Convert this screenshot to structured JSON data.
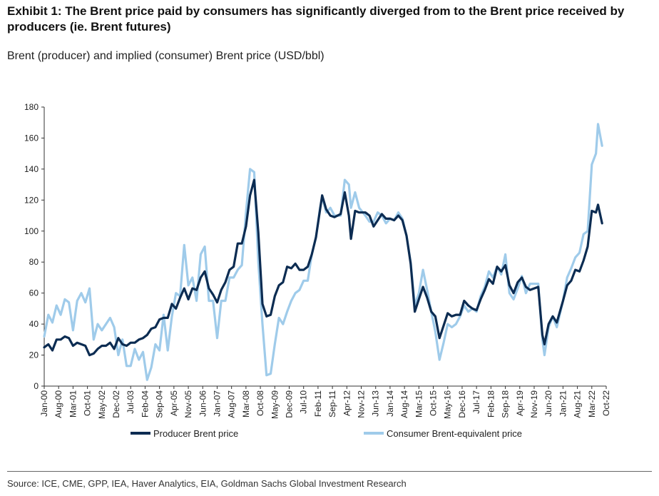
{
  "title": "Exhibit 1: The Brent price paid by consumers has significantly diverged from to the Brent price received by producers (ie. Brent futures)",
  "subtitle": "Brent (producer) and implied (consumer) Brent price (USD/bbl)",
  "source": "Source: ICE, CME, GPP, IEA, Haver Analytics, EIA, Goldman Sachs Global Investment Research",
  "colors": {
    "producer": "#0c2c52",
    "consumer": "#9fcbea",
    "axis": "#333333"
  },
  "chart_data": {
    "type": "line",
    "ylim": [
      0,
      180
    ],
    "y_ticks": [
      "0",
      "20",
      "40",
      "60",
      "80",
      "100",
      "120",
      "140",
      "160",
      "180"
    ],
    "x_ticks": [
      "Jan-00",
      "Aug-00",
      "Mar-01",
      "Oct-01",
      "May-02",
      "Dec-02",
      "Jul-03",
      "Feb-04",
      "Sep-04",
      "Apr-05",
      "Nov-05",
      "Jun-06",
      "Jan-07",
      "Aug-07",
      "Mar-08",
      "Oct-08",
      "May-09",
      "Dec-09",
      "Jul-10",
      "Feb-11",
      "Sep-11",
      "Apr-12",
      "Nov-12",
      "Jun-13",
      "Jan-14",
      "Aug-14",
      "Mar-15",
      "Oct-15",
      "May-16",
      "Dec-16",
      "Jul-17",
      "Feb-18",
      "Sep-18",
      "Apr-19",
      "Nov-19",
      "Jun-20",
      "Jan-21",
      "Aug-21",
      "Mar-22",
      "Oct-22"
    ],
    "legend_position": "bottom",
    "series": [
      {
        "name": "Producer Brent price",
        "points": [
          [
            "2000-01",
            25
          ],
          [
            "2000-03",
            27
          ],
          [
            "2000-05",
            23
          ],
          [
            "2000-07",
            30
          ],
          [
            "2000-09",
            30
          ],
          [
            "2000-11",
            32
          ],
          [
            "2001-01",
            31
          ],
          [
            "2001-03",
            26
          ],
          [
            "2001-05",
            28
          ],
          [
            "2001-07",
            27
          ],
          [
            "2001-09",
            26
          ],
          [
            "2001-11",
            20
          ],
          [
            "2002-01",
            21
          ],
          [
            "2002-03",
            24
          ],
          [
            "2002-05",
            26
          ],
          [
            "2002-07",
            26
          ],
          [
            "2002-09",
            28
          ],
          [
            "2002-11",
            24
          ],
          [
            "2003-01",
            31
          ],
          [
            "2003-03",
            27
          ],
          [
            "2003-05",
            26
          ],
          [
            "2003-07",
            28
          ],
          [
            "2003-09",
            28
          ],
          [
            "2003-11",
            30
          ],
          [
            "2004-01",
            31
          ],
          [
            "2004-03",
            33
          ],
          [
            "2004-05",
            37
          ],
          [
            "2004-07",
            38
          ],
          [
            "2004-09",
            43
          ],
          [
            "2004-11",
            44
          ],
          [
            "2005-01",
            44
          ],
          [
            "2005-03",
            53
          ],
          [
            "2005-05",
            50
          ],
          [
            "2005-07",
            57
          ],
          [
            "2005-09",
            63
          ],
          [
            "2005-11",
            56
          ],
          [
            "2006-01",
            63
          ],
          [
            "2006-03",
            62
          ],
          [
            "2006-05",
            70
          ],
          [
            "2006-07",
            74
          ],
          [
            "2006-09",
            63
          ],
          [
            "2006-11",
            59
          ],
          [
            "2007-01",
            54
          ],
          [
            "2007-03",
            62
          ],
          [
            "2007-05",
            67
          ],
          [
            "2007-07",
            75
          ],
          [
            "2007-09",
            77
          ],
          [
            "2007-11",
            92
          ],
          [
            "2008-01",
            92
          ],
          [
            "2008-03",
            103
          ],
          [
            "2008-05",
            123
          ],
          [
            "2008-07",
            133
          ],
          [
            "2008-09",
            99
          ],
          [
            "2008-11",
            53
          ],
          [
            "2009-01",
            45
          ],
          [
            "2009-03",
            46
          ],
          [
            "2009-05",
            58
          ],
          [
            "2009-07",
            65
          ],
          [
            "2009-09",
            67
          ],
          [
            "2009-11",
            77
          ],
          [
            "2010-01",
            76
          ],
          [
            "2010-03",
            79
          ],
          [
            "2010-05",
            75
          ],
          [
            "2010-07",
            75
          ],
          [
            "2010-09",
            77
          ],
          [
            "2010-11",
            85
          ],
          [
            "2011-01",
            96
          ],
          [
            "2011-03",
            114
          ],
          [
            "2011-04",
            123
          ],
          [
            "2011-06",
            114
          ],
          [
            "2011-08",
            110
          ],
          [
            "2011-10",
            109
          ],
          [
            "2012-01",
            111
          ],
          [
            "2012-03",
            125
          ],
          [
            "2012-05",
            110
          ],
          [
            "2012-06",
            95
          ],
          [
            "2012-08",
            113
          ],
          [
            "2012-10",
            112
          ],
          [
            "2013-01",
            112
          ],
          [
            "2013-03",
            110
          ],
          [
            "2013-05",
            103
          ],
          [
            "2013-07",
            107
          ],
          [
            "2013-09",
            111
          ],
          [
            "2013-11",
            108
          ],
          [
            "2014-01",
            108
          ],
          [
            "2014-03",
            107
          ],
          [
            "2014-05",
            110
          ],
          [
            "2014-07",
            107
          ],
          [
            "2014-09",
            97
          ],
          [
            "2014-11",
            79
          ],
          [
            "2015-01",
            48
          ],
          [
            "2015-03",
            56
          ],
          [
            "2015-05",
            64
          ],
          [
            "2015-07",
            57
          ],
          [
            "2015-09",
            48
          ],
          [
            "2015-11",
            45
          ],
          [
            "2016-01",
            31
          ],
          [
            "2016-03",
            39
          ],
          [
            "2016-05",
            47
          ],
          [
            "2016-07",
            45
          ],
          [
            "2016-09",
            46
          ],
          [
            "2016-11",
            46
          ],
          [
            "2017-01",
            55
          ],
          [
            "2017-03",
            52
          ],
          [
            "2017-05",
            50
          ],
          [
            "2017-07",
            49
          ],
          [
            "2017-09",
            56
          ],
          [
            "2017-11",
            62
          ],
          [
            "2018-01",
            69
          ],
          [
            "2018-03",
            66
          ],
          [
            "2018-05",
            77
          ],
          [
            "2018-07",
            74
          ],
          [
            "2018-09",
            78
          ],
          [
            "2018-11",
            65
          ],
          [
            "2019-01",
            60
          ],
          [
            "2019-03",
            67
          ],
          [
            "2019-05",
            70
          ],
          [
            "2019-07",
            64
          ],
          [
            "2019-09",
            62
          ],
          [
            "2019-11",
            63
          ],
          [
            "2020-01",
            64
          ],
          [
            "2020-03",
            33
          ],
          [
            "2020-04",
            27
          ],
          [
            "2020-06",
            40
          ],
          [
            "2020-08",
            45
          ],
          [
            "2020-10",
            41
          ],
          [
            "2021-01",
            55
          ],
          [
            "2021-03",
            65
          ],
          [
            "2021-05",
            68
          ],
          [
            "2021-07",
            75
          ],
          [
            "2021-09",
            74
          ],
          [
            "2021-11",
            81
          ],
          [
            "2022-01",
            90
          ],
          [
            "2022-03",
            113
          ],
          [
            "2022-05",
            112
          ],
          [
            "2022-06",
            117
          ],
          [
            "2022-08",
            105
          ]
        ]
      },
      {
        "name": "Consumer Brent-equivalent price",
        "points": [
          [
            "2000-01",
            32
          ],
          [
            "2000-03",
            46
          ],
          [
            "2000-05",
            41
          ],
          [
            "2000-07",
            52
          ],
          [
            "2000-09",
            46
          ],
          [
            "2000-11",
            56
          ],
          [
            "2001-01",
            54
          ],
          [
            "2001-03",
            36
          ],
          [
            "2001-05",
            55
          ],
          [
            "2001-07",
            60
          ],
          [
            "2001-09",
            54
          ],
          [
            "2001-11",
            63
          ],
          [
            "2002-01",
            30
          ],
          [
            "2002-03",
            40
          ],
          [
            "2002-05",
            36
          ],
          [
            "2002-07",
            40
          ],
          [
            "2002-09",
            44
          ],
          [
            "2002-11",
            38
          ],
          [
            "2003-01",
            20
          ],
          [
            "2003-03",
            30
          ],
          [
            "2003-05",
            13
          ],
          [
            "2003-07",
            13
          ],
          [
            "2003-09",
            24
          ],
          [
            "2003-11",
            17
          ],
          [
            "2004-01",
            22
          ],
          [
            "2004-03",
            4
          ],
          [
            "2004-05",
            12
          ],
          [
            "2004-07",
            27
          ],
          [
            "2004-09",
            23
          ],
          [
            "2004-11",
            46
          ],
          [
            "2005-01",
            23
          ],
          [
            "2005-03",
            45
          ],
          [
            "2005-05",
            60
          ],
          [
            "2005-07",
            58
          ],
          [
            "2005-09",
            91
          ],
          [
            "2005-11",
            65
          ],
          [
            "2006-01",
            70
          ],
          [
            "2006-03",
            55
          ],
          [
            "2006-05",
            85
          ],
          [
            "2006-07",
            90
          ],
          [
            "2006-09",
            55
          ],
          [
            "2006-11",
            55
          ],
          [
            "2007-01",
            31
          ],
          [
            "2007-03",
            55
          ],
          [
            "2007-05",
            55
          ],
          [
            "2007-07",
            70
          ],
          [
            "2007-09",
            70
          ],
          [
            "2007-11",
            75
          ],
          [
            "2008-01",
            78
          ],
          [
            "2008-03",
            112
          ],
          [
            "2008-05",
            140
          ],
          [
            "2008-07",
            138
          ],
          [
            "2008-09",
            80
          ],
          [
            "2008-11",
            40
          ],
          [
            "2009-01",
            7
          ],
          [
            "2009-03",
            8
          ],
          [
            "2009-05",
            27
          ],
          [
            "2009-07",
            44
          ],
          [
            "2009-09",
            40
          ],
          [
            "2009-11",
            48
          ],
          [
            "2010-01",
            55
          ],
          [
            "2010-03",
            60
          ],
          [
            "2010-05",
            62
          ],
          [
            "2010-07",
            68
          ],
          [
            "2010-09",
            68
          ],
          [
            "2010-11",
            85
          ],
          [
            "2011-01",
            96
          ],
          [
            "2011-03",
            115
          ],
          [
            "2011-04",
            122
          ],
          [
            "2011-06",
            112
          ],
          [
            "2011-08",
            115
          ],
          [
            "2011-10",
            110
          ],
          [
            "2012-01",
            110
          ],
          [
            "2012-03",
            133
          ],
          [
            "2012-05",
            130
          ],
          [
            "2012-06",
            115
          ],
          [
            "2012-08",
            125
          ],
          [
            "2012-10",
            115
          ],
          [
            "2013-01",
            110
          ],
          [
            "2013-03",
            106
          ],
          [
            "2013-05",
            106
          ],
          [
            "2013-07",
            112
          ],
          [
            "2013-09",
            110
          ],
          [
            "2013-11",
            105
          ],
          [
            "2014-01",
            108
          ],
          [
            "2014-03",
            107
          ],
          [
            "2014-05",
            112
          ],
          [
            "2014-07",
            108
          ],
          [
            "2014-09",
            97
          ],
          [
            "2014-11",
            80
          ],
          [
            "2015-01",
            52
          ],
          [
            "2015-03",
            60
          ],
          [
            "2015-05",
            75
          ],
          [
            "2015-07",
            62
          ],
          [
            "2015-09",
            48
          ],
          [
            "2015-11",
            35
          ],
          [
            "2016-01",
            17
          ],
          [
            "2016-03",
            28
          ],
          [
            "2016-05",
            40
          ],
          [
            "2016-07",
            38
          ],
          [
            "2016-09",
            40
          ],
          [
            "2016-11",
            45
          ],
          [
            "2017-01",
            52
          ],
          [
            "2017-03",
            48
          ],
          [
            "2017-05",
            50
          ],
          [
            "2017-07",
            48
          ],
          [
            "2017-09",
            58
          ],
          [
            "2017-11",
            64
          ],
          [
            "2018-01",
            74
          ],
          [
            "2018-03",
            70
          ],
          [
            "2018-05",
            77
          ],
          [
            "2018-07",
            72
          ],
          [
            "2018-09",
            85
          ],
          [
            "2018-11",
            60
          ],
          [
            "2019-01",
            56
          ],
          [
            "2019-03",
            63
          ],
          [
            "2019-05",
            71
          ],
          [
            "2019-07",
            60
          ],
          [
            "2019-09",
            66
          ],
          [
            "2019-11",
            66
          ],
          [
            "2020-01",
            66
          ],
          [
            "2020-03",
            30
          ],
          [
            "2020-04",
            20
          ],
          [
            "2020-06",
            38
          ],
          [
            "2020-08",
            45
          ],
          [
            "2020-10",
            38
          ],
          [
            "2021-01",
            55
          ],
          [
            "2021-03",
            70
          ],
          [
            "2021-05",
            76
          ],
          [
            "2021-07",
            83
          ],
          [
            "2021-09",
            86
          ],
          [
            "2021-11",
            98
          ],
          [
            "2022-01",
            100
          ],
          [
            "2022-03",
            143
          ],
          [
            "2022-05",
            150
          ],
          [
            "2022-06",
            169
          ],
          [
            "2022-08",
            155
          ]
        ]
      }
    ]
  }
}
